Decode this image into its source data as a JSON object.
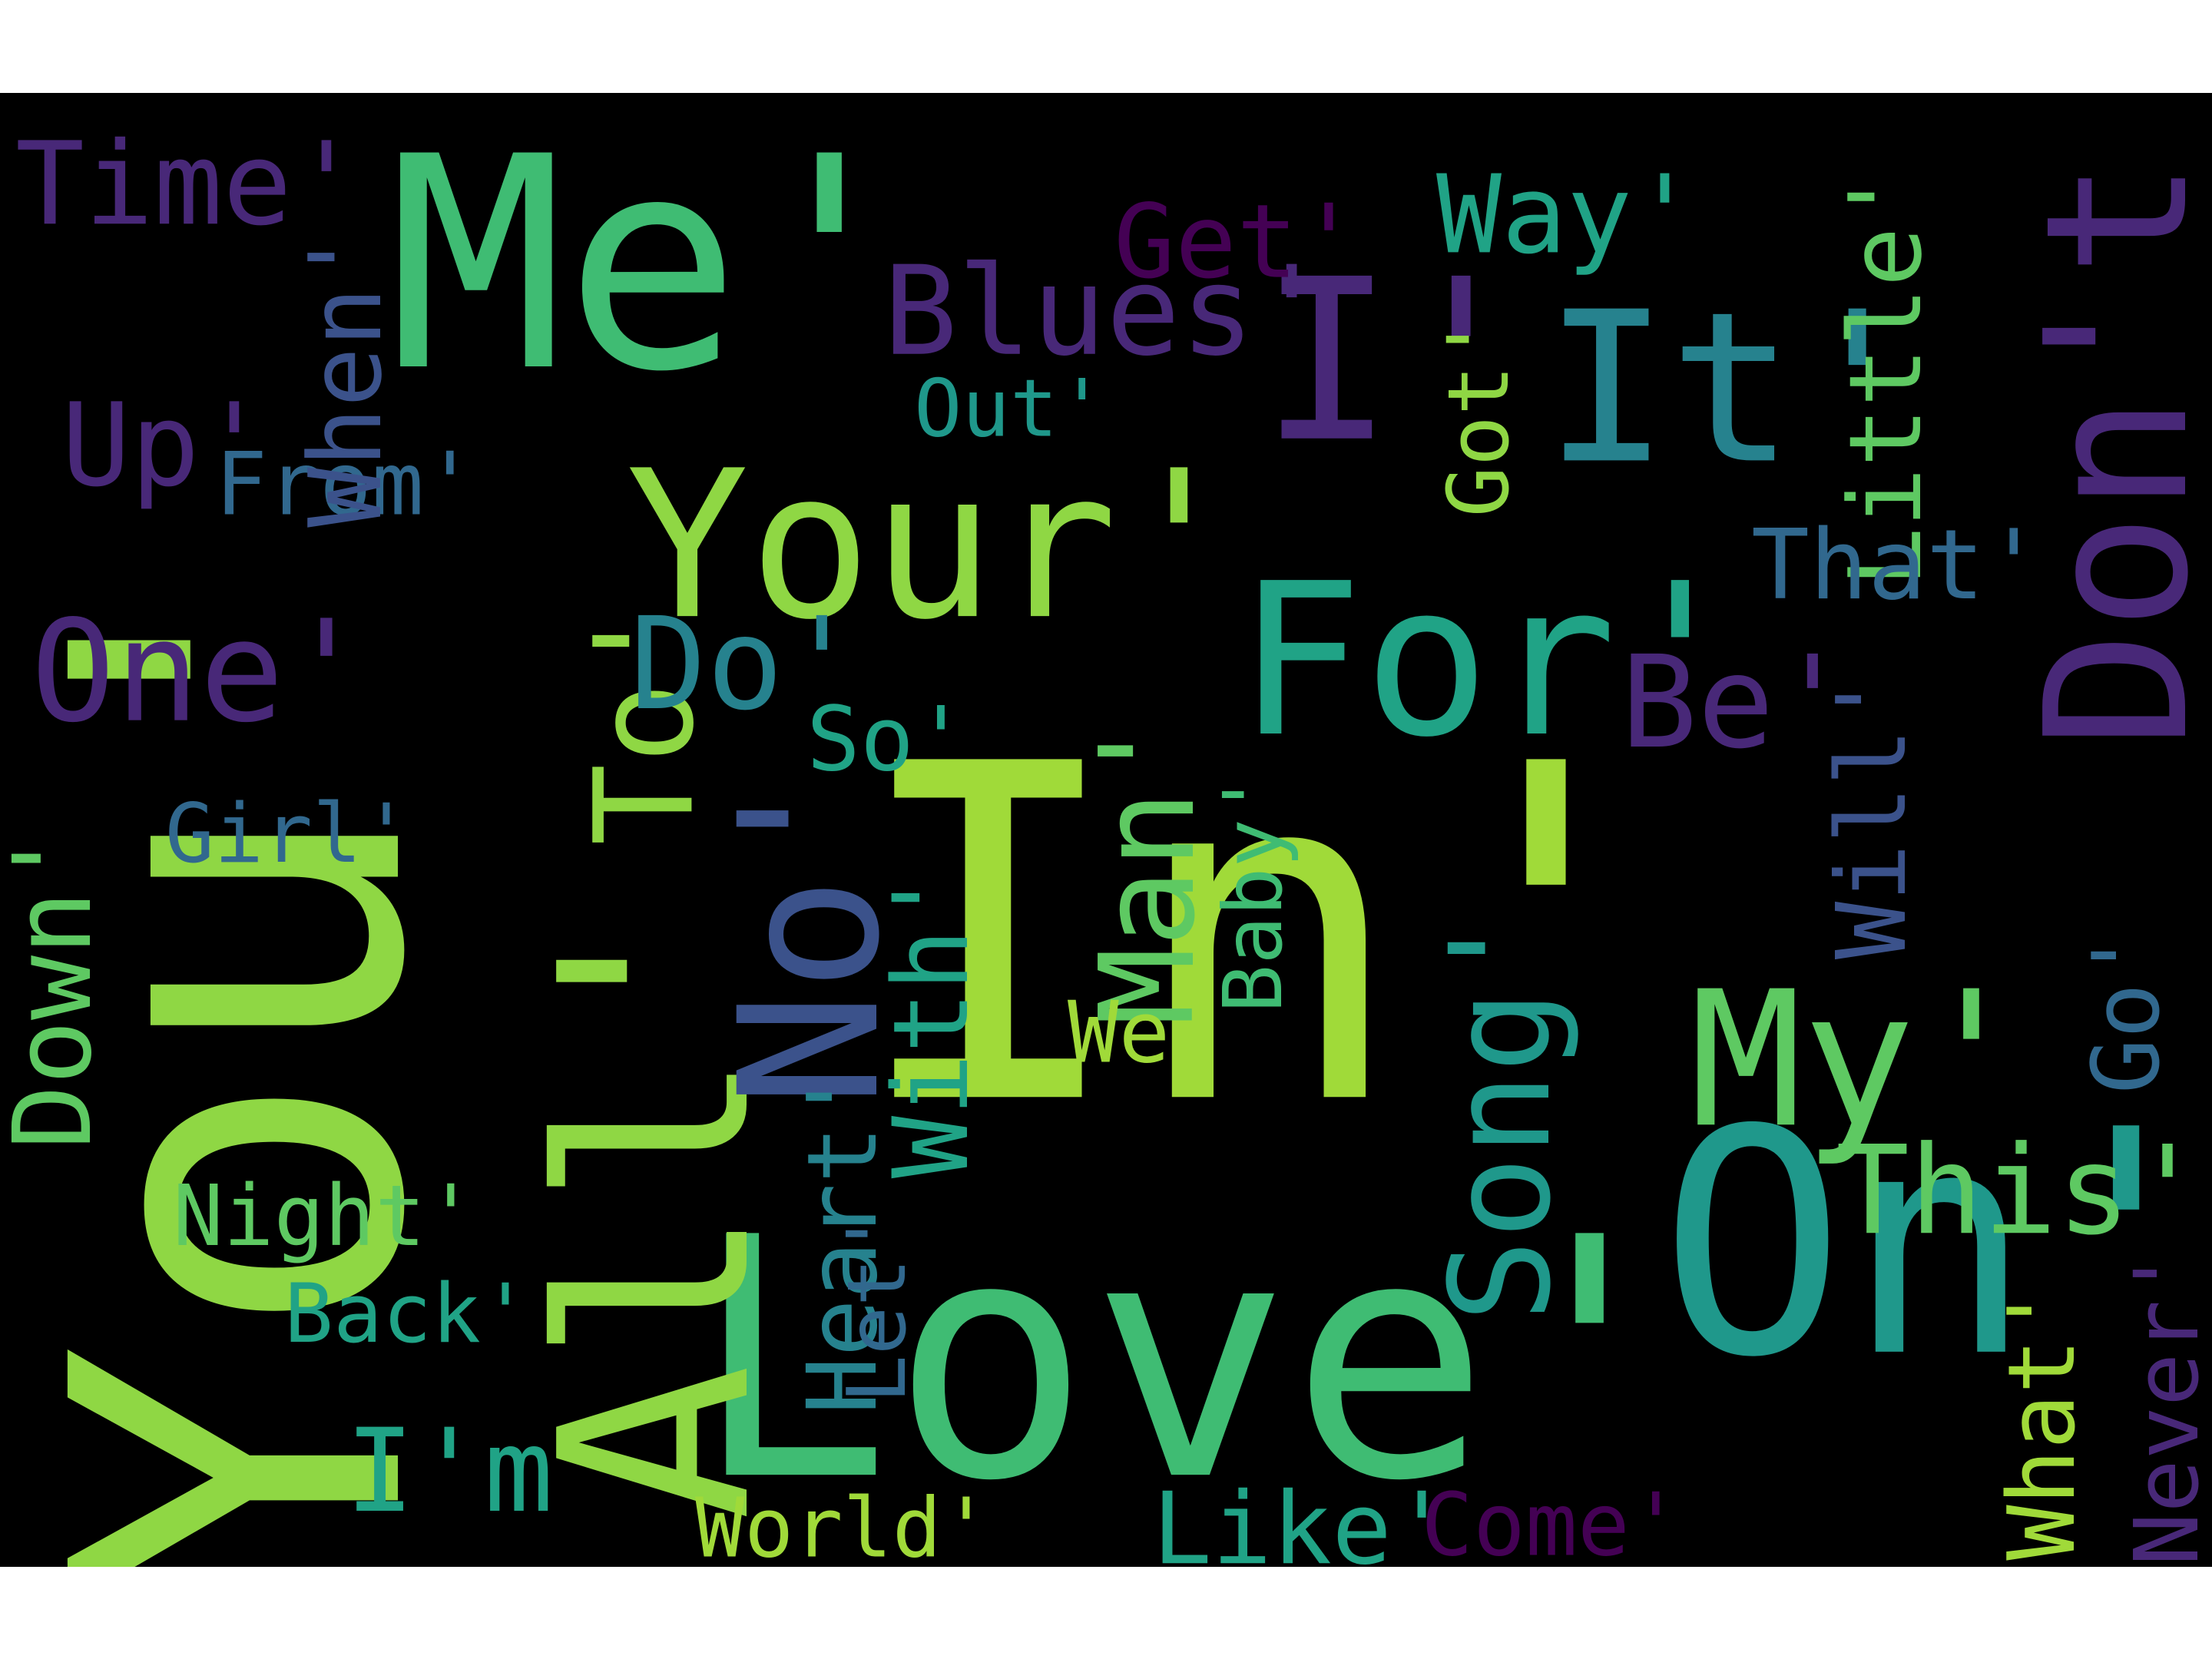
{
  "palette": {
    "background": "#000000",
    "page": "#ffffff",
    "bright_green": "#8fd744",
    "lime": "#a0da39",
    "green": "#5ec962",
    "mid_green": "#3fbc73",
    "teal_green": "#20a386",
    "teal": "#1f988b",
    "blue_teal": "#26828e",
    "steel_blue": "#31688e",
    "indigo": "#3b528b",
    "violet": "#472d7b",
    "deep_purple": "#482878",
    "dark_purple": "#440154"
  },
  "words": [
    {
      "text": "You'",
      "color": "#8fd744"
    },
    {
      "text": "In'",
      "color": "#a0da39"
    },
    {
      "text": "Me'",
      "color": "#3fbc73"
    },
    {
      "text": "I'",
      "color": "#482878"
    },
    {
      "text": "Love'",
      "color": "#3fbc73"
    },
    {
      "text": "On'",
      "color": "#1f988b"
    },
    {
      "text": "It'",
      "color": "#26828e"
    },
    {
      "text": "Don't",
      "color": "#482878"
    },
    {
      "text": "To'",
      "color": "#8fd744"
    },
    {
      "text": "All'",
      "color": "#8fd744"
    },
    {
      "text": "No'",
      "color": "#3b528b"
    },
    {
      "text": "Your'",
      "color": "#8fd744"
    },
    {
      "text": "For'",
      "color": "#20a386"
    },
    {
      "text": "My'",
      "color": "#5ec962"
    },
    {
      "text": "Time'",
      "color": "#482878"
    },
    {
      "text": "Blues'",
      "color": "#482878"
    },
    {
      "text": "Up'",
      "color": "#482878"
    },
    {
      "text": "One'",
      "color": "#482878"
    },
    {
      "text": "Do'",
      "color": "#26828e"
    },
    {
      "text": "Be'",
      "color": "#482878"
    },
    {
      "text": "Get'",
      "color": "#440154"
    },
    {
      "text": "Way'",
      "color": "#20a386"
    },
    {
      "text": "Out'",
      "color": "#1f988b"
    },
    {
      "text": "From'",
      "color": "#31688e"
    },
    {
      "text": "When'",
      "color": "#3b528b"
    },
    {
      "text": "Little'",
      "color": "#5ec962"
    },
    {
      "text": "Got'",
      "color": "#8fd744"
    },
    {
      "text": "That'",
      "color": "#31688e"
    },
    {
      "text": "Will'",
      "color": "#3b528b"
    },
    {
      "text": "So'",
      "color": "#20a386"
    },
    {
      "text": "Girl'",
      "color": "#31688e"
    },
    {
      "text": "Down'",
      "color": "#5ec962"
    },
    {
      "text": "Man'",
      "color": "#5ec962"
    },
    {
      "text": "Baby'",
      "color": "#3fbc73"
    },
    {
      "text": "With'",
      "color": "#20a386"
    },
    {
      "text": "We'",
      "color": "#a0da39"
    },
    {
      "text": "Song'",
      "color": "#1f988b"
    },
    {
      "text": "Go'",
      "color": "#31688e"
    },
    {
      "text": "This'",
      "color": "#5ec962"
    },
    {
      "text": "Night'",
      "color": "#5ec962"
    },
    {
      "text": "Heart'",
      "color": "#26828e"
    },
    {
      "text": "Let'",
      "color": "#31688e"
    },
    {
      "text": "Back'",
      "color": "#20a386"
    },
    {
      "text": "I'm",
      "color": "#20a386"
    },
    {
      "text": "World'",
      "color": "#a0da39"
    },
    {
      "text": "Like'",
      "color": "#20a386"
    },
    {
      "text": "Come'",
      "color": "#440154"
    },
    {
      "text": "What'",
      "color": "#a0da39"
    },
    {
      "text": "Never'",
      "color": "#482878"
    }
  ]
}
